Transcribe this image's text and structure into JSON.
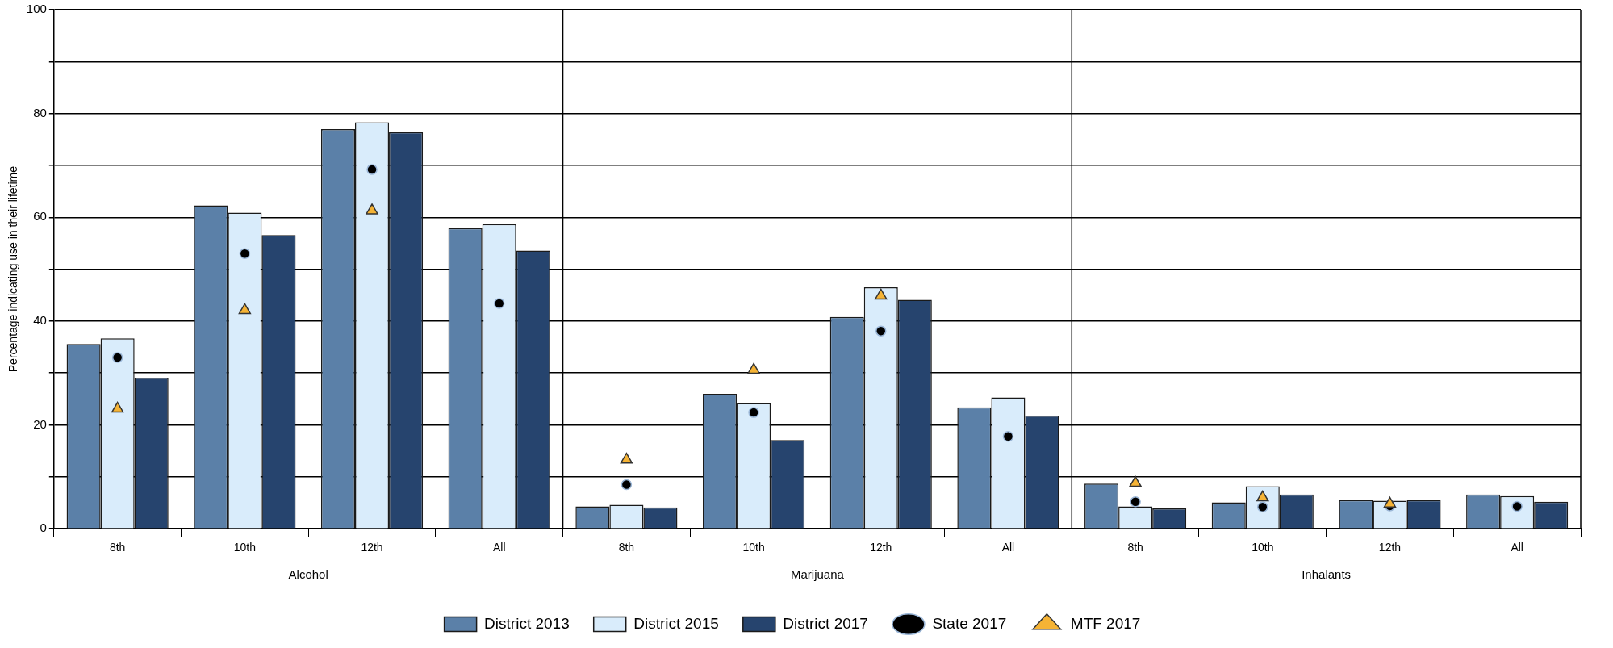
{
  "chart_data": {
    "type": "bar",
    "ylabel": "Percentage indicating use in their lifetime",
    "categories": [
      "8th",
      "10th",
      "12th",
      "All",
      "8th",
      "10th",
      "12th",
      "All",
      "8th",
      "10th",
      "12th",
      "All"
    ],
    "annotations": [
      "Alcohol",
      "Marijuana",
      "Inhalants"
    ],
    "series": [
      {
        "name": "District 2013",
        "color": "#5b80a8",
        "values": [
          35.6,
          62.3,
          77.0,
          57.9,
          4.3,
          26.0,
          40.8,
          23.4,
          8.7,
          5.1,
          5.5,
          6.6
        ]
      },
      {
        "name": "District 2015",
        "color": "#d9ecfb",
        "values": [
          36.7,
          60.9,
          78.3,
          58.7,
          4.6,
          24.2,
          46.5,
          25.3,
          4.3,
          8.2,
          5.4,
          6.3
        ]
      },
      {
        "name": "District 2017",
        "color": "#26446e",
        "values": [
          29.1,
          56.6,
          76.4,
          53.6,
          4.1,
          17.1,
          44.1,
          21.8,
          3.9,
          6.6,
          5.5,
          5.2
        ]
      },
      {
        "name": "State 2017",
        "type": "scatter",
        "marker": "circle",
        "color": "#000000",
        "values": [
          33.0,
          53.0,
          69.2,
          43.4,
          8.5,
          22.4,
          38.1,
          17.8,
          5.2,
          4.2,
          4.4,
          4.3
        ]
      },
      {
        "name": "MTF 2017",
        "type": "scatter",
        "marker": "triangle",
        "color": "#f5b335",
        "values": [
          23.1,
          42.1,
          61.3,
          null,
          13.3,
          30.6,
          44.9,
          null,
          8.8,
          6.0,
          4.8,
          null
        ]
      }
    ],
    "ylim": [
      0,
      100
    ],
    "yticks": [
      0,
      {
        "value": 10,
        "label": null
      },
      20,
      {
        "value": 30,
        "label": null
      },
      40,
      {
        "value": 50,
        "label": null
      },
      60,
      {
        "value": 70,
        "label": null
      },
      80,
      {
        "value": 90,
        "label": null
      },
      100
    ],
    "grid": "y",
    "legend": "bottom"
  }
}
